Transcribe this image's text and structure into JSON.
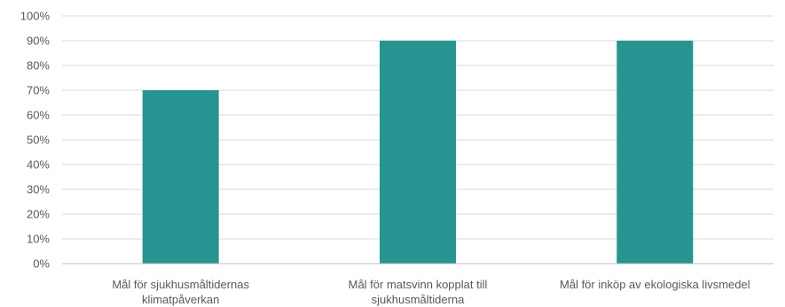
{
  "chart_data": {
    "type": "bar",
    "categories": [
      [
        "Mål för sjukhusmåltidernas",
        "klimatpåverkan"
      ],
      [
        "Mål för matsvinn kopplat till",
        "sjukhusmåltiderna"
      ],
      [
        "Mål för inköp av ekologiska livsmedel"
      ]
    ],
    "values": [
      70,
      90,
      90
    ],
    "ylim": [
      0,
      100
    ],
    "yticks": [
      "0%",
      "10%",
      "20%",
      "30%",
      "40%",
      "50%",
      "60%",
      "70%",
      "80%",
      "90%",
      "100%"
    ],
    "ytick_values": [
      0,
      10,
      20,
      30,
      40,
      50,
      60,
      70,
      80,
      90,
      100
    ],
    "grid": true,
    "bar_color": "#269490"
  }
}
